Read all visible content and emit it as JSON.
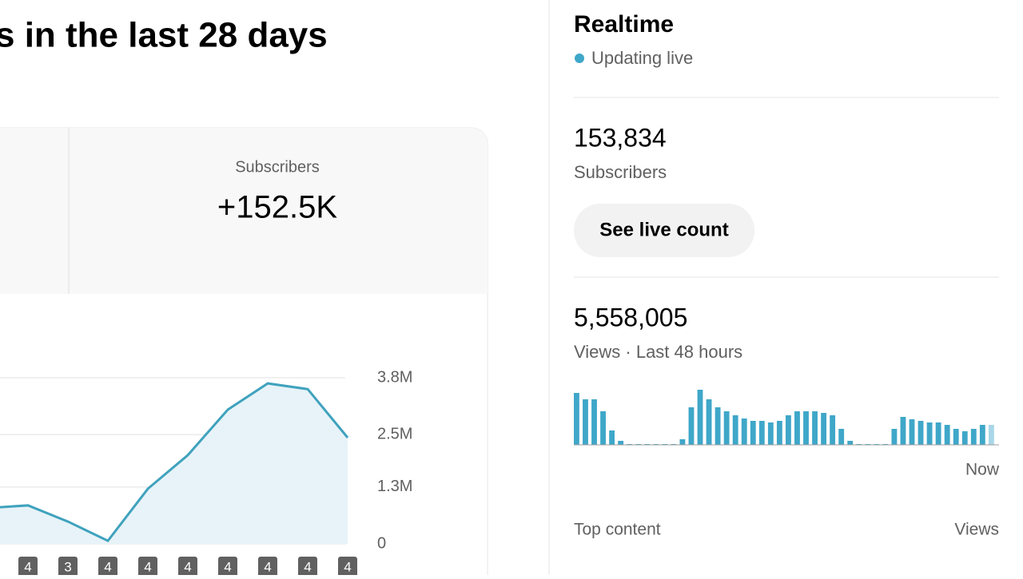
{
  "header": {
    "title": "s in the last 28 days"
  },
  "metric_card": {
    "label": "Subscribers",
    "value": "+152.5K"
  },
  "main_chart": {
    "type": "line",
    "color": "#3fa2bd",
    "area_color": "#e7f3f8",
    "categories": [
      null,
      "4",
      "3",
      "4",
      "4",
      "4",
      "4",
      "4",
      "4",
      "4"
    ],
    "values": [
      820000,
      880000,
      510000,
      70000,
      1260000,
      2030000,
      3070000,
      3670000,
      3540000,
      2430000
    ],
    "ylim": [
      0,
      3800000
    ],
    "yticks": [
      {
        "value": 0,
        "label": "0"
      },
      {
        "value": 1300000,
        "label": "1.3M"
      },
      {
        "value": 2500000,
        "label": "2.5M"
      },
      {
        "value": 3800000,
        "label": "3.8M"
      }
    ],
    "grid": true
  },
  "realtime": {
    "title": "Realtime",
    "status": "Updating live",
    "subscribers": {
      "value": "153,834",
      "label": "Subscribers"
    },
    "button": "See live count",
    "views": {
      "value": "5,558,005",
      "label": "Views · Last 48 hours"
    },
    "chart": {
      "type": "bar",
      "color": "#3fa7c9",
      "current_color": "#a9d7e8",
      "now_label": "Now",
      "values": [
        65,
        57,
        57,
        42,
        18,
        5,
        1,
        1,
        1,
        1,
        1,
        1,
        7,
        47,
        69,
        57,
        47,
        42,
        37,
        33,
        30,
        30,
        28,
        30,
        37,
        42,
        42,
        42,
        40,
        37,
        20,
        5,
        1,
        1,
        1,
        1,
        20,
        35,
        32,
        30,
        28,
        28,
        25,
        20,
        17,
        20,
        25,
        25
      ]
    },
    "top_content": {
      "label": "Top content",
      "metric": "Views"
    }
  }
}
